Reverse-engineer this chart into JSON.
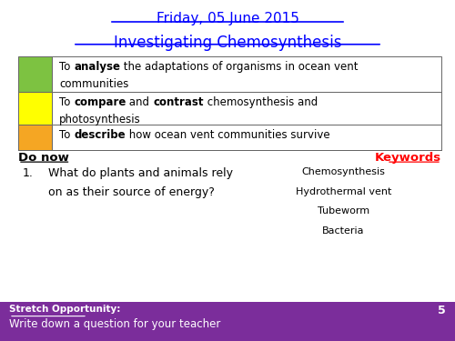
{
  "date_text": "Friday, 05 June 2015",
  "title_text": "Investigating Chemosynthesis",
  "date_color": "#0000FF",
  "title_color": "#0000FF",
  "bg_color": "#FFFFFF",
  "table_rows": [
    {
      "color": "#7DC241",
      "line1_segs": [
        [
          "To ",
          false
        ],
        [
          "analyse",
          true
        ],
        [
          " the adaptations of organisms in ocean vent",
          false
        ]
      ],
      "line2_segs": [
        [
          "communities",
          false
        ]
      ]
    },
    {
      "color": "#FFFF00",
      "line1_segs": [
        [
          "To ",
          false
        ],
        [
          "compare",
          true
        ],
        [
          " and ",
          false
        ],
        [
          "contrast",
          true
        ],
        [
          " chemosynthesis and",
          false
        ]
      ],
      "line2_segs": [
        [
          "photosynthesis",
          false
        ]
      ]
    },
    {
      "color": "#F5A623",
      "line1_segs": [
        [
          "To ",
          false
        ],
        [
          "describe",
          true
        ],
        [
          " how ocean vent communities survive",
          false
        ]
      ],
      "line2_segs": []
    }
  ],
  "do_now_label": "Do now",
  "keywords_label": "Keywords",
  "keywords_color": "#FF0000",
  "question_number": "1.",
  "question_line1": "What do plants and animals rely",
  "question_line2": "on as their source of energy?",
  "keywords_list": [
    "Chemosynthesis",
    "Hydrothermal vent",
    "Tubeworm",
    "Bacteria"
  ],
  "stretch_label": "Stretch Opportunity:",
  "stretch_text": "Write down a question for your teacher",
  "stretch_bg": "#7B2D9B",
  "stretch_text_color": "#FFFFFF",
  "page_number": "5"
}
